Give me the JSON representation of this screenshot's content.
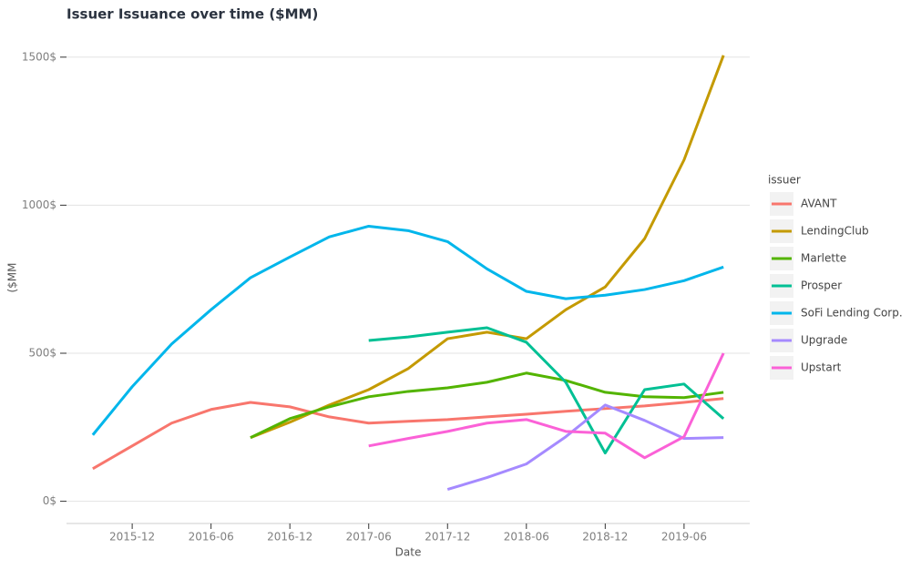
{
  "chart_data": {
    "type": "line",
    "title": "Issuer Issuance over time ($MM)",
    "x_label": "Date",
    "y_label": "($MM",
    "legend_title": "issuer",
    "legend_position": "right",
    "grid": true,
    "xlim": [
      "2015-07",
      "2019-11"
    ],
    "xticks": [
      "2015-12",
      "2016-06",
      "2016-12",
      "2017-06",
      "2017-12",
      "2018-06",
      "2018-12",
      "2019-06"
    ],
    "ylim": [
      -75,
      1570
    ],
    "yticks": [
      {
        "value": 0,
        "label": "0$"
      },
      {
        "value": 500,
        "label": "500$"
      },
      {
        "value": 1000,
        "label": "1000$"
      },
      {
        "value": 1500,
        "label": "1500$"
      }
    ],
    "x": [
      "2015-09",
      "2015-12",
      "2016-03",
      "2016-06",
      "2016-09",
      "2016-12",
      "2017-03",
      "2017-06",
      "2017-09",
      "2017-12",
      "2018-03",
      "2018-06",
      "2018-09",
      "2018-12",
      "2019-03",
      "2019-06",
      "2019-09"
    ],
    "series": [
      {
        "name": "AVANT",
        "color": "#f8766d",
        "values": [
          110,
          187,
          264,
          310,
          334,
          319,
          285,
          264,
          270,
          276,
          285,
          294,
          304,
          313,
          322,
          334,
          347
        ]
      },
      {
        "name": "LendingClub",
        "color": "#c49a00",
        "values": [
          null,
          null,
          null,
          null,
          215,
          267,
          325,
          377,
          448,
          549,
          571,
          549,
          647,
          724,
          887,
          1153,
          1506
        ]
      },
      {
        "name": "Marlette",
        "color": "#53b400",
        "values": [
          null,
          null,
          null,
          null,
          215,
          279,
          319,
          353,
          371,
          383,
          402,
          433,
          408,
          368,
          353,
          350,
          368
        ]
      },
      {
        "name": "Prosper",
        "color": "#00c094",
        "values": [
          null,
          null,
          null,
          null,
          null,
          null,
          null,
          543,
          555,
          571,
          586,
          537,
          402,
          163,
          377,
          396,
          279
        ]
      },
      {
        "name": "SoFi Lending Corp.",
        "color": "#00b6eb",
        "values": [
          224,
          387,
          531,
          647,
          755,
          825,
          893,
          929,
          914,
          877,
          785,
          709,
          684,
          696,
          715,
          745,
          791
        ]
      },
      {
        "name": "Upgrade",
        "color": "#a58aff",
        "values": [
          null,
          null,
          null,
          null,
          null,
          null,
          null,
          null,
          null,
          40,
          80,
          126,
          218,
          325,
          273,
          212,
          215
        ]
      },
      {
        "name": "Upstart",
        "color": "#fb61d7",
        "values": [
          null,
          null,
          null,
          null,
          null,
          null,
          null,
          187,
          212,
          236,
          264,
          276,
          236,
          230,
          147,
          218,
          500
        ]
      }
    ]
  }
}
